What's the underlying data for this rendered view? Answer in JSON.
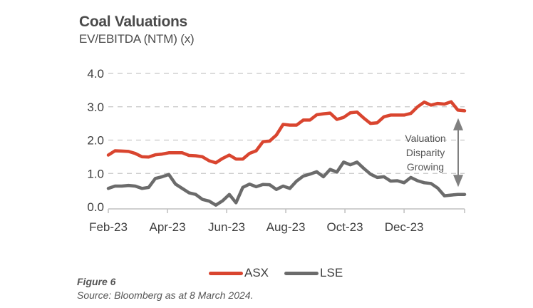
{
  "header": {
    "title": "Coal Valuations",
    "subtitle": "EV/EBITDA (NTM) (x)"
  },
  "footer": {
    "figure": "Figure 6",
    "source": "Source: Bloomberg as at 8 March 2024."
  },
  "colors": {
    "asx": "#d9452f",
    "lse": "#6b6b6b",
    "grid": "#c8c8c8",
    "axis": "#bfbfbf",
    "arrow": "#808080"
  },
  "chart_data": {
    "type": "line",
    "title": "Coal Valuations",
    "subtitle": "EV/EBITDA (NTM) (x)",
    "xlabel": "",
    "ylabel": "EV/EBITDA (NTM) (x)",
    "ylim": [
      0,
      4
    ],
    "yticks": [
      "0.0",
      "1.0",
      "2.0",
      "3.0",
      "4.0"
    ],
    "ytick_values": [
      0,
      1,
      2,
      3,
      4
    ],
    "xticks": [
      "Feb-23",
      "Apr-23",
      "Jun-23",
      "Aug-23",
      "Oct-23",
      "Dec-23"
    ],
    "xtick_positions": [
      0,
      8.8,
      17.6,
      26.4,
      35.2,
      44
    ],
    "x_count": 54,
    "grid": true,
    "legend": "bottom-center",
    "legend_entries": [
      "ASX",
      "LSE"
    ],
    "annotation": {
      "lines": [
        "Valuation",
        "Disparity",
        "Growing"
      ],
      "arrow_from": 2.55,
      "arrow_to": 0.7
    },
    "series": [
      {
        "name": "ASX",
        "values": [
          1.55,
          1.68,
          1.67,
          1.66,
          1.6,
          1.5,
          1.49,
          1.56,
          1.58,
          1.62,
          1.62,
          1.62,
          1.54,
          1.53,
          1.5,
          1.38,
          1.32,
          1.45,
          1.55,
          1.43,
          1.43,
          1.6,
          1.68,
          1.95,
          1.97,
          2.15,
          2.47,
          2.45,
          2.45,
          2.6,
          2.6,
          2.76,
          2.79,
          2.81,
          2.62,
          2.68,
          2.82,
          2.84,
          2.66,
          2.5,
          2.52,
          2.7,
          2.75,
          2.75,
          2.75,
          2.8,
          3.0,
          3.14,
          3.05,
          3.1,
          3.08,
          3.15,
          2.9,
          2.88
        ],
        "color": "#d9452f"
      },
      {
        "name": "LSE",
        "values": [
          0.55,
          0.62,
          0.62,
          0.64,
          0.62,
          0.55,
          0.58,
          0.85,
          0.9,
          0.97,
          0.68,
          0.55,
          0.42,
          0.37,
          0.22,
          0.17,
          0.05,
          0.18,
          0.37,
          0.12,
          0.58,
          0.68,
          0.6,
          0.67,
          0.66,
          0.52,
          0.62,
          0.55,
          0.77,
          0.92,
          0.98,
          1.05,
          0.9,
          1.12,
          1.04,
          1.34,
          1.26,
          1.34,
          1.15,
          0.98,
          0.88,
          0.9,
          0.77,
          0.78,
          0.72,
          0.88,
          0.78,
          0.72,
          0.7,
          0.56,
          0.33,
          0.35,
          0.37,
          0.37
        ],
        "color": "#6b6b6b"
      }
    ]
  }
}
